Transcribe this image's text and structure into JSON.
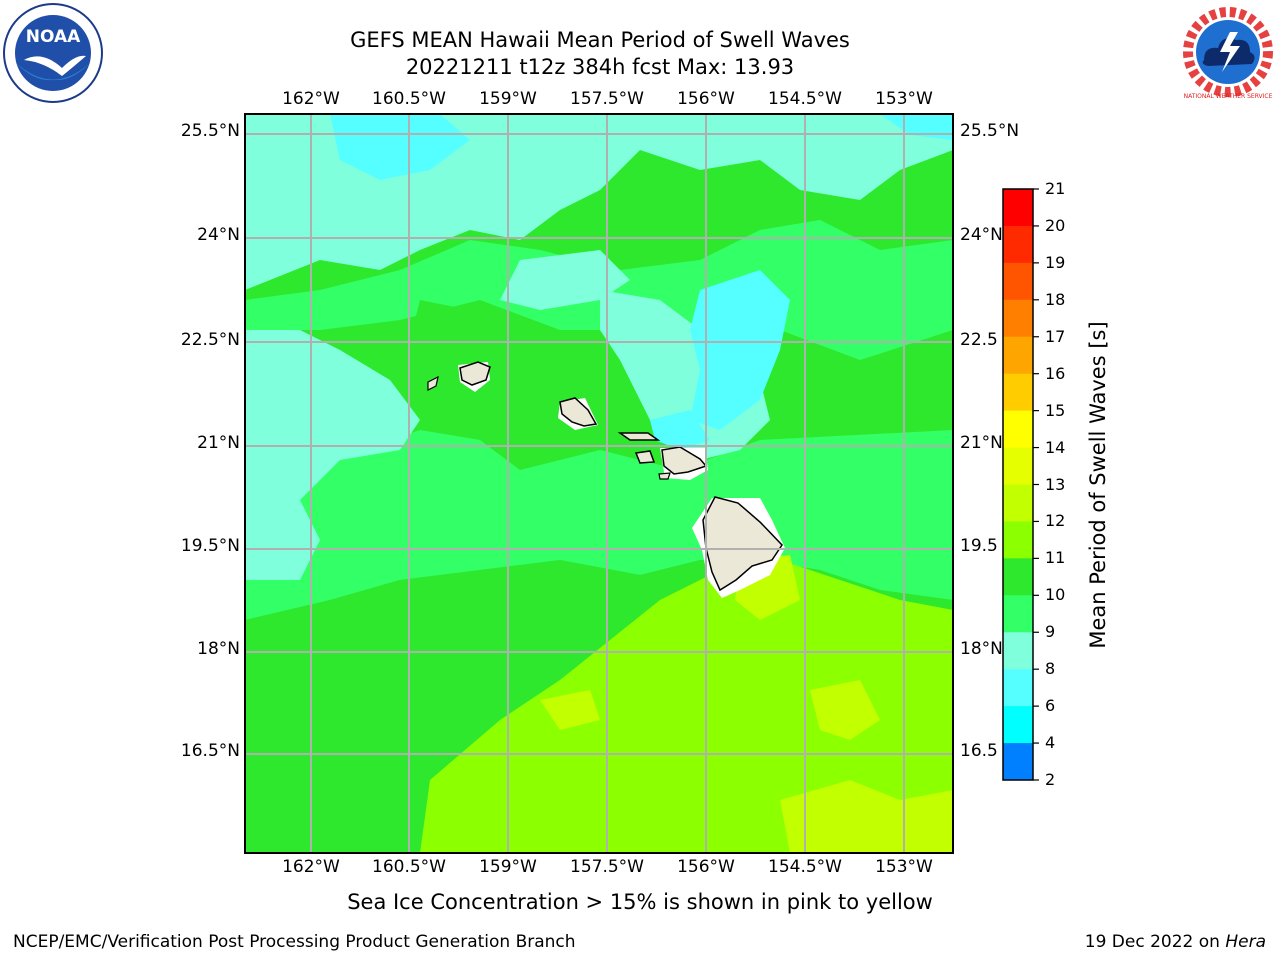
{
  "header": {
    "title_line1": "GEFS MEAN Hawaii Mean Period of Swell Waves",
    "title_line2": "20221211 t12z 384h fcst   Max: 13.93"
  },
  "map": {
    "lon_labels": [
      "162°W",
      "160.5°W",
      "159°W",
      "157.5°W",
      "156°W",
      "154.5°W",
      "153°W"
    ],
    "lat_labels": [
      "25.5°N",
      "24°N",
      "22.5°N",
      "21°N",
      "19.5°N",
      "18°N",
      "16.5°N"
    ],
    "lat_labels_right": [
      "25.5°N",
      "24°N",
      "22.5",
      "21°N",
      "19.5",
      "18°N",
      "16.5"
    ]
  },
  "colorbar": {
    "title": "Mean Period of Swell Waves [s]",
    "ticks": [
      "21",
      "20",
      "19",
      "18",
      "17",
      "16",
      "15",
      "14",
      "13",
      "12",
      "11",
      "10",
      "9",
      "8",
      "6",
      "4",
      "2"
    ],
    "colors": [
      "#ff0000",
      "#ff2a00",
      "#ff5500",
      "#ff8000",
      "#ffa500",
      "#ffcc00",
      "#ffff00",
      "#e6ff00",
      "#c2ff00",
      "#8cff00",
      "#2ee82e",
      "#33ff66",
      "#80ffdd",
      "#55ffff",
      "#00ffff",
      "#0080ff",
      "#0000ff"
    ]
  },
  "subtitle": "Sea Ice Concentration > 15% is shown in pink to yellow",
  "footer": {
    "left": "NCEP/EMC/Verification Post Processing Product Generation Branch",
    "right_prefix": "19 Dec 2022 on ",
    "right_host": "Hera"
  },
  "logos": {
    "noaa": "NOAA",
    "nws": "NATIONAL WEATHER SERVICE"
  }
}
